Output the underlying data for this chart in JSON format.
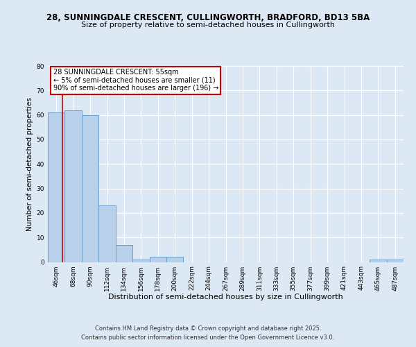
{
  "title_line1": "28, SUNNINGDALE CRESCENT, CULLINGWORTH, BRADFORD, BD13 5BA",
  "title_line2": "Size of property relative to semi-detached houses in Cullingworth",
  "xlabel": "Distribution of semi-detached houses by size in Cullingworth",
  "ylabel": "Number of semi-detached properties",
  "bin_labels": [
    "46sqm",
    "68sqm",
    "90sqm",
    "112sqm",
    "134sqm",
    "156sqm",
    "178sqm",
    "200sqm",
    "222sqm",
    "244sqm",
    "267sqm",
    "289sqm",
    "311sqm",
    "333sqm",
    "355sqm",
    "377sqm",
    "399sqm",
    "421sqm",
    "443sqm",
    "465sqm",
    "487sqm"
  ],
  "bar_values": [
    61,
    62,
    60,
    23,
    7,
    1,
    2,
    2,
    0,
    0,
    0,
    0,
    0,
    0,
    0,
    0,
    0,
    0,
    0,
    1,
    1
  ],
  "bar_color": "#b8d0ea",
  "bar_edge_color": "#6aa0cc",
  "annotation_title": "28 SUNNINGDALE CRESCENT: 55sqm",
  "annotation_line2": "← 5% of semi-detached houses are smaller (11)",
  "annotation_line3": "90% of semi-detached houses are larger (196) →",
  "annotation_box_facecolor": "#ffffff",
  "annotation_box_edgecolor": "#cc0000",
  "vline_color": "#cc0000",
  "vline_x": 0.38,
  "ylim": [
    0,
    80
  ],
  "yticks": [
    0,
    10,
    20,
    30,
    40,
    50,
    60,
    70,
    80
  ],
  "footer_line1": "Contains HM Land Registry data © Crown copyright and database right 2025.",
  "footer_line2": "Contains public sector information licensed under the Open Government Licence v3.0.",
  "bg_color": "#dde8f5",
  "plot_bg_color": "#dde8f5",
  "grid_color": "#ffffff",
  "title_fontsize": 8.5,
  "subtitle_fontsize": 8,
  "xlabel_fontsize": 8,
  "ylabel_fontsize": 7.5,
  "tick_fontsize": 6.5,
  "ann_fontsize": 7,
  "footer_fontsize": 6
}
